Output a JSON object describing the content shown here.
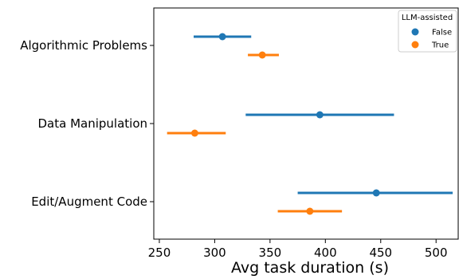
{
  "chart_data": {
    "type": "scatter",
    "orientation": "horizontal",
    "xlabel": "Avg task duration (s)",
    "ylabel": "",
    "xlim": [
      245,
      520
    ],
    "xticks": [
      250,
      300,
      350,
      400,
      450,
      500
    ],
    "categories": [
      "Algorithmic Problems",
      "Data Manipulation",
      "Edit/Augment Code"
    ],
    "legend": {
      "title": "LLM-assisted",
      "position": "top-right"
    },
    "series": [
      {
        "name": "False",
        "color": "#1f77b4",
        "points": [
          {
            "category": "Algorithmic Problems",
            "x": 307,
            "low": 281,
            "high": 333
          },
          {
            "category": "Data Manipulation",
            "x": 395,
            "low": 328,
            "high": 462
          },
          {
            "category": "Edit/Augment Code",
            "x": 446,
            "low": 375,
            "high": 515
          }
        ]
      },
      {
        "name": "True",
        "color": "#ff7f0e",
        "points": [
          {
            "category": "Algorithmic Problems",
            "x": 343,
            "low": 330,
            "high": 358
          },
          {
            "category": "Data Manipulation",
            "x": 282,
            "low": 257,
            "high": 310
          },
          {
            "category": "Edit/Augment Code",
            "x": 386,
            "low": 357,
            "high": 415
          }
        ]
      }
    ]
  }
}
